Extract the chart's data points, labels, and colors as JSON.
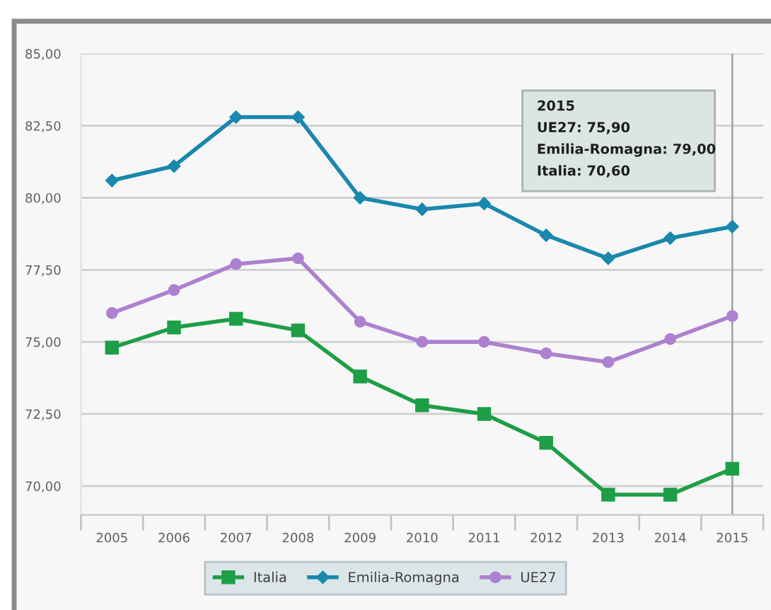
{
  "chart_data": {
    "type": "line",
    "x": [
      2005,
      2006,
      2007,
      2008,
      2009,
      2010,
      2011,
      2012,
      2013,
      2014,
      2015
    ],
    "xlim": [
      2004.5,
      2015.5
    ],
    "xticks": [
      2005,
      2006,
      2007,
      2008,
      2009,
      2010,
      2011,
      2012,
      2013,
      2014,
      2015
    ],
    "ylim": [
      69,
      85
    ],
    "yticks": [
      {
        "value": 70,
        "label": "70,00"
      },
      {
        "value": 72.5,
        "label": "72,50"
      },
      {
        "value": 75,
        "label": "75,00"
      },
      {
        "value": 77.5,
        "label": "77,50"
      },
      {
        "value": 80,
        "label": "80,00"
      },
      {
        "value": 82.5,
        "label": "82,50"
      },
      {
        "value": 85,
        "label": "85,00"
      }
    ],
    "grid": "y",
    "legend": "bottom",
    "line_style": "solid",
    "series": [
      {
        "name": "Italia",
        "color": "#1e9e46",
        "marker": "square",
        "values": [
          74.8,
          75.5,
          75.8,
          75.4,
          73.8,
          72.8,
          72.5,
          71.5,
          69.7,
          69.7,
          70.6
        ]
      },
      {
        "name": "Emilia-Romagna",
        "color": "#1a88ad",
        "marker": "diamond",
        "values": [
          80.6,
          81.1,
          82.8,
          82.8,
          80.0,
          79.6,
          79.8,
          78.7,
          77.9,
          78.6,
          79.0
        ]
      },
      {
        "name": "UE27",
        "color": "#ad80d0",
        "marker": "circle",
        "values": [
          76.0,
          76.8,
          77.7,
          77.9,
          75.7,
          75.0,
          75.0,
          74.6,
          74.3,
          75.1,
          75.9
        ]
      }
    ],
    "ref_lines": [
      {
        "axis": "x",
        "value": 2015,
        "color": "#a0a6a9"
      }
    ],
    "annotations": [
      "2015",
      "UE27: 75,90",
      "Emilia-Romagna: 79,00",
      "Italia: 70,60"
    ]
  }
}
